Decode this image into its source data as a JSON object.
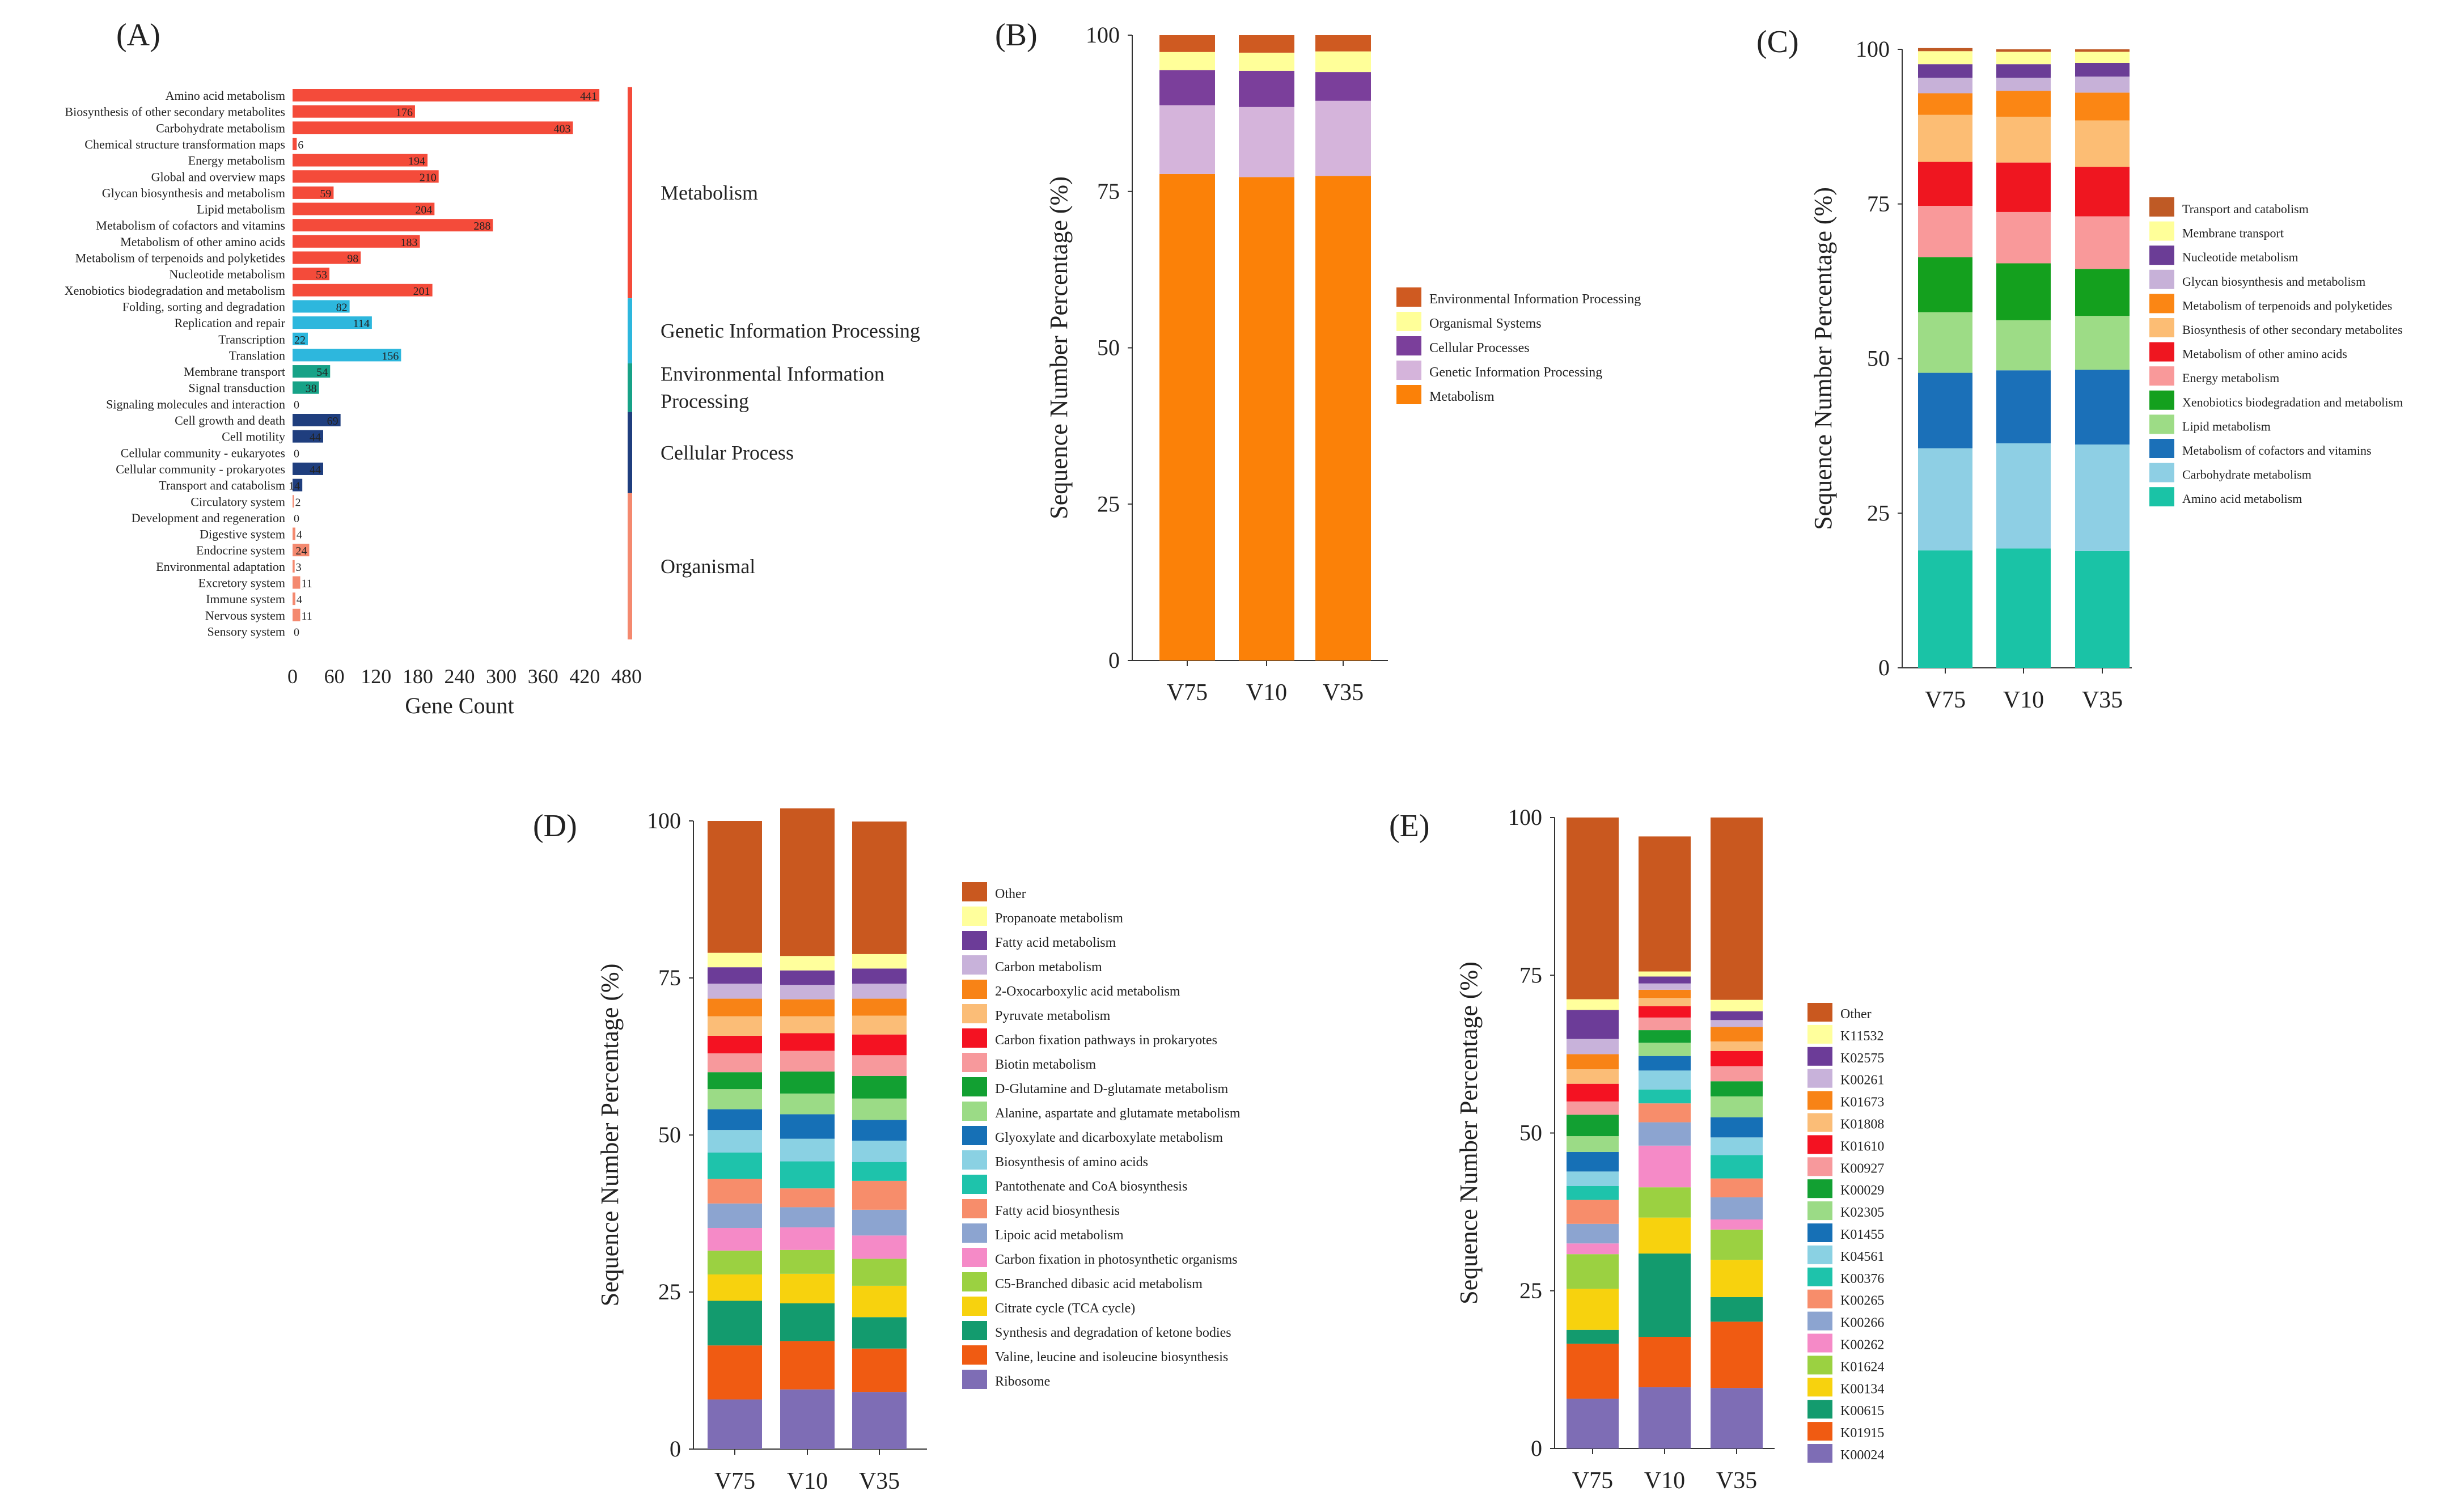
{
  "panel_labels": {
    "A": "(A)",
    "B": "(B)",
    "C": "(C)",
    "D": "(D)",
    "E": "(E)"
  },
  "colors": {
    "metabolism": "#f44b3a",
    "genetic": "#2db7dd",
    "environmental": "#17a287",
    "cellular": "#1f3e7e",
    "organismal": "#f4896f"
  },
  "chart_data": [
    {
      "id": "A",
      "type": "bar",
      "orientation": "horizontal",
      "xlabel": "Gene Count",
      "xticks": [
        0,
        60,
        120,
        180,
        240,
        300,
        360,
        420,
        480
      ],
      "xlim": [
        0,
        480
      ],
      "categories": [
        "Amino acid metabolism",
        "Biosynthesis of other secondary metabolites",
        "Carbohydrate metabolism",
        "Chemical structure transformation maps",
        "Energy metabolism",
        "Global and overview maps",
        "Glycan biosynthesis and metabolism",
        "Lipid metabolism",
        "Metabolism of cofactors and vitamins",
        "Metabolism of other amino acids",
        "Metabolism of terpenoids and polyketides",
        "Nucleotide metabolism",
        "Xenobiotics biodegradation and metabolism",
        "Folding, sorting and degradation",
        "Replication and repair",
        "Transcription",
        "Translation",
        "Membrane transport",
        "Signal transduction",
        "Signaling molecules and interaction",
        "Cell growth and death",
        "Cell motility",
        "Cellular community - eukaryotes",
        "Cellular community - prokaryotes",
        "Transport and catabolism",
        "Circulatory system",
        "Development and regeneration",
        "Digestive system",
        "Endocrine system",
        "Environmental adaptation",
        "Excretory system",
        "Immune system",
        "Nervous system",
        "Sensory system"
      ],
      "values": [
        441,
        176,
        403,
        6,
        194,
        210,
        59,
        204,
        288,
        183,
        98,
        53,
        201,
        82,
        114,
        22,
        156,
        54,
        38,
        0,
        69,
        44,
        0,
        44,
        14,
        2,
        0,
        4,
        24,
        3,
        11,
        4,
        11,
        0
      ],
      "value_labels": [
        "441",
        "176",
        "403",
        "6",
        "194",
        "210",
        "59",
        "204",
        "288",
        "183",
        "98",
        "53",
        "201",
        "82",
        "114",
        "22",
        "156",
        "54",
        "38",
        "0",
        "69",
        "44",
        "0",
        "44",
        "14",
        "2",
        "0",
        "4",
        "24",
        "3",
        "11",
        "4",
        "11",
        "0"
      ],
      "groups": [
        {
          "key": "metabolism",
          "label": "Metabolism",
          "start": 0,
          "end": 12
        },
        {
          "key": "genetic",
          "label": "Genetic Information Processing",
          "start": 13,
          "end": 16
        },
        {
          "key": "environmental",
          "label": "Environmental Information Processing",
          "lines": [
            "Environmental Information",
            "Processing"
          ],
          "start": 17,
          "end": 19
        },
        {
          "key": "cellular",
          "label": "Cellular Process",
          "start": 20,
          "end": 24
        },
        {
          "key": "organismal",
          "label": "Organismal",
          "start": 25,
          "end": 33
        }
      ]
    },
    {
      "id": "B",
      "type": "stacked-bar",
      "ylabel": "Sequence Number Percentage (%)",
      "ylim": [
        0,
        100
      ],
      "yticks": [
        0,
        25,
        50,
        75,
        100
      ],
      "categories": [
        "V75",
        "V10",
        "V35"
      ],
      "series": [
        {
          "name": "Metabolism",
          "color": "#fb8108",
          "values": [
            77.8,
            77.3,
            77.5
          ]
        },
        {
          "name": "Genetic Information Processing",
          "color": "#d5b4db",
          "values": [
            11.0,
            11.2,
            12.0
          ]
        },
        {
          "name": "Cellular Processes",
          "color": "#7b3f9b",
          "values": [
            5.6,
            5.8,
            4.6
          ]
        },
        {
          "name": "Organismal Systems",
          "color": "#ffff99",
          "values": [
            2.9,
            2.9,
            3.3
          ]
        },
        {
          "name": "Environmental Information Processing",
          "color": "#cf5a21",
          "values": [
            2.7,
            2.8,
            2.6
          ]
        }
      ],
      "legend_order": [
        "Environmental Information Processing",
        "Organismal Systems",
        "Cellular Processes",
        "Genetic Information Processing",
        "Metabolism"
      ]
    },
    {
      "id": "C",
      "type": "stacked-bar",
      "ylabel": "Sequence Number Percentage (%)",
      "ylim": [
        0,
        100
      ],
      "yticks": [
        0,
        25,
        50,
        75,
        100
      ],
      "categories": [
        "V75",
        "V10",
        "V35"
      ],
      "series": [
        {
          "name": "Amino acid metabolism",
          "color": "#1ac3a6",
          "values": [
            19.0,
            19.3,
            18.9
          ]
        },
        {
          "name": "Carbohydrate metabolism",
          "color": "#8ecfe4",
          "values": [
            16.5,
            17.0,
            17.2
          ]
        },
        {
          "name": "Metabolism of cofactors and vitamins",
          "color": "#1b70b8",
          "values": [
            12.2,
            11.8,
            12.1
          ]
        },
        {
          "name": "Lipid metabolism",
          "color": "#9ddc86",
          "values": [
            9.8,
            8.1,
            8.7
          ]
        },
        {
          "name": "Xenobiotics biodegradation and metabolism",
          "color": "#14a01e",
          "values": [
            8.9,
            9.2,
            7.6
          ]
        },
        {
          "name": "Energy metabolism",
          "color": "#f9999a",
          "values": [
            8.3,
            8.3,
            8.5
          ]
        },
        {
          "name": "Metabolism of other amino acids",
          "color": "#ef1620",
          "values": [
            7.1,
            8.0,
            8.0
          ]
        },
        {
          "name": "Biosynthesis of other secondary metabolites",
          "color": "#fcbd74",
          "values": [
            7.6,
            7.4,
            7.5
          ]
        },
        {
          "name": "Metabolism of terpenoids and polyketides",
          "color": "#fb8614",
          "values": [
            3.5,
            4.2,
            4.5
          ]
        },
        {
          "name": "Glycan biosynthesis and metabolism",
          "color": "#c7b1d8",
          "values": [
            2.5,
            2.1,
            2.6
          ]
        },
        {
          "name": "Nucleotide metabolism",
          "color": "#6b3d96",
          "values": [
            2.2,
            2.2,
            2.2
          ]
        },
        {
          "name": "Membrane transport",
          "color": "#ffff99",
          "values": [
            2.1,
            2.0,
            1.8
          ]
        },
        {
          "name": "Transport and catabolism",
          "color": "#bf5a25",
          "values": [
            0.5,
            0.4,
            0.4
          ]
        }
      ],
      "legend_order": [
        "Transport and catabolism",
        "Membrane transport",
        "Nucleotide metabolism",
        "Glycan biosynthesis and metabolism",
        "Metabolism of terpenoids and polyketides",
        "Biosynthesis of other secondary metabolites",
        "Metabolism of other amino acids",
        "Energy metabolism",
        "Xenobiotics biodegradation and metabolism",
        "Lipid metabolism",
        "Metabolism of cofactors and vitamins",
        "Carbohydrate metabolism",
        "Amino acid metabolism"
      ]
    },
    {
      "id": "D",
      "type": "stacked-bar",
      "ylabel": "Sequence Number Percentage (%)",
      "ylim": [
        0,
        100
      ],
      "yticks": [
        0,
        25,
        50,
        75,
        100
      ],
      "categories": [
        "V75",
        "V10",
        "V35"
      ],
      "series": [
        {
          "name": "Ribosome",
          "color": "#7e6db5",
          "values": [
            7.9,
            9.5,
            9.1
          ]
        },
        {
          "name": "Valine, leucine and isoleucine biosynthesis",
          "color": "#f05b12",
          "values": [
            8.6,
            7.7,
            6.9
          ]
        },
        {
          "name": "Synthesis and degradation of ketone bodies",
          "color": "#139b6e",
          "values": [
            7.1,
            6.0,
            5.0
          ]
        },
        {
          "name": "Citrate cycle (TCA cycle)",
          "color": "#f7d20e",
          "values": [
            4.2,
            4.7,
            5.0
          ]
        },
        {
          "name": "C5-Branched dibasic acid metabolism",
          "color": "#9bd141",
          "values": [
            3.8,
            3.8,
            4.3
          ]
        },
        {
          "name": "Carbon fixation in photosynthetic organisms",
          "color": "#f58ac7",
          "values": [
            3.6,
            3.6,
            3.7
          ]
        },
        {
          "name": "Lipoic acid metabolism",
          "color": "#8ca4d0",
          "values": [
            3.9,
            3.2,
            4.1
          ]
        },
        {
          "name": "Fatty acid biosynthesis",
          "color": "#f78d6b",
          "values": [
            3.9,
            3.0,
            4.6
          ]
        },
        {
          "name": "Pantothenate and CoA biosynthesis",
          "color": "#1ec3ab",
          "values": [
            4.2,
            4.3,
            3.0
          ]
        },
        {
          "name": "Biosynthesis of amino acids",
          "color": "#8ad1e3",
          "values": [
            3.6,
            3.6,
            3.4
          ]
        },
        {
          "name": "Glyoxylate and dicarboxylate metabolism",
          "color": "#1670b6",
          "values": [
            3.3,
            3.9,
            3.3
          ]
        },
        {
          "name": "Alanine, aspartate and glutamate metabolism",
          "color": "#9bdb86",
          "values": [
            3.2,
            3.3,
            3.4
          ]
        },
        {
          "name": "D-Glutamine and D-glutamate metabolism",
          "color": "#12a032",
          "values": [
            2.7,
            3.5,
            3.6
          ]
        },
        {
          "name": "Biotin metabolism",
          "color": "#f7999c",
          "values": [
            3.0,
            3.3,
            3.3
          ]
        },
        {
          "name": "Carbon fixation pathways in prokaryotes",
          "color": "#f41222",
          "values": [
            2.8,
            2.8,
            3.3
          ]
        },
        {
          "name": "Pyruvate metabolism",
          "color": "#fbbd77",
          "values": [
            3.1,
            2.7,
            3.0
          ]
        },
        {
          "name": "2-Oxocarboxylic acid metabolism",
          "color": "#f88316",
          "values": [
            2.8,
            2.7,
            2.7
          ]
        },
        {
          "name": "Carbon metabolism",
          "color": "#c8b2da",
          "values": [
            2.4,
            2.3,
            2.4
          ]
        },
        {
          "name": "Fatty acid metabolism",
          "color": "#6c3c98",
          "values": [
            2.6,
            2.3,
            2.4
          ]
        },
        {
          "name": "Propanoate metabolism",
          "color": "#ffff9c",
          "values": [
            2.3,
            2.3,
            2.3
          ]
        },
        {
          "name": "Other",
          "color": "#c9581f",
          "values": [
            21.0,
            23.5,
            21.1
          ]
        }
      ],
      "legend_order": [
        "Other",
        "Propanoate metabolism",
        "Fatty acid metabolism",
        "Carbon metabolism",
        "2-Oxocarboxylic acid metabolism",
        "Pyruvate metabolism",
        "Carbon fixation pathways in prokaryotes",
        "Biotin metabolism",
        "D-Glutamine and D-glutamate metabolism",
        "Alanine, aspartate and glutamate metabolism",
        "Glyoxylate and dicarboxylate metabolism",
        "Biosynthesis of amino acids",
        "Pantothenate and CoA biosynthesis",
        "Fatty acid biosynthesis",
        "Lipoic acid metabolism",
        "Carbon fixation in photosynthetic organisms",
        "C5-Branched dibasic acid metabolism",
        "Citrate cycle (TCA cycle)",
        "Synthesis and degradation of ketone bodies",
        "Valine, leucine and isoleucine biosynthesis",
        "Ribosome"
      ]
    },
    {
      "id": "E",
      "type": "stacked-bar",
      "ylabel": "Sequence Number Percentage (%)",
      "ylim": [
        0,
        100
      ],
      "yticks": [
        0,
        25,
        50,
        75,
        100
      ],
      "categories": [
        "V75",
        "V10",
        "V35"
      ],
      "series": [
        {
          "name": "K00024",
          "color": "#7e6db5",
          "values": [
            7.9,
            9.7,
            9.6
          ]
        },
        {
          "name": "K01915",
          "color": "#f05b12",
          "values": [
            8.7,
            8.0,
            10.5
          ]
        },
        {
          "name": "K00615",
          "color": "#139b6e",
          "values": [
            2.2,
            13.2,
            3.9
          ]
        },
        {
          "name": "K00134",
          "color": "#f7d20e",
          "values": [
            6.5,
            5.7,
            5.9
          ]
        },
        {
          "name": "K01624",
          "color": "#9bd141",
          "values": [
            5.5,
            4.8,
            4.8
          ]
        },
        {
          "name": "K00262",
          "color": "#f58ac7",
          "values": [
            1.7,
            6.6,
            1.6
          ]
        },
        {
          "name": "K00266",
          "color": "#8ca4d0",
          "values": [
            3.1,
            3.7,
            3.5
          ]
        },
        {
          "name": "K00265",
          "color": "#f78d6b",
          "values": [
            3.8,
            3.0,
            3.0
          ]
        },
        {
          "name": "K00376",
          "color": "#1ec3ab",
          "values": [
            2.2,
            2.2,
            3.7
          ]
        },
        {
          "name": "K04561",
          "color": "#8ad1e3",
          "values": [
            2.3,
            3.0,
            2.8
          ]
        },
        {
          "name": "K01455",
          "color": "#1670b6",
          "values": [
            3.1,
            2.3,
            3.2
          ]
        },
        {
          "name": "K02305",
          "color": "#9bdb86",
          "values": [
            2.5,
            2.1,
            3.3
          ]
        },
        {
          "name": "K00029",
          "color": "#12a032",
          "values": [
            3.4,
            2.0,
            2.4
          ]
        },
        {
          "name": "K00927",
          "color": "#f7999c",
          "values": [
            2.1,
            2.0,
            2.4
          ]
        },
        {
          "name": "K01610",
          "color": "#f41222",
          "values": [
            2.8,
            1.8,
            2.4
          ]
        },
        {
          "name": "K01808",
          "color": "#fbbd77",
          "values": [
            2.3,
            1.3,
            1.5
          ]
        },
        {
          "name": "K01673",
          "color": "#f88316",
          "values": [
            2.4,
            1.3,
            2.3
          ]
        },
        {
          "name": "K00261",
          "color": "#c8b2da",
          "values": [
            2.4,
            1.0,
            1.1
          ]
        },
        {
          "name": "K02575",
          "color": "#6c3c98",
          "values": [
            4.6,
            1.1,
            1.4
          ]
        },
        {
          "name": "K11532",
          "color": "#ffff9c",
          "values": [
            1.7,
            0.8,
            1.8
          ]
        },
        {
          "name": "Other",
          "color": "#c9581f",
          "values": [
            28.8,
            21.4,
            28.9
          ]
        }
      ],
      "legend_order": [
        "Other",
        "K11532",
        "K02575",
        "K00261",
        "K01673",
        "K01808",
        "K01610",
        "K00927",
        "K00029",
        "K02305",
        "K01455",
        "K04561",
        "K00376",
        "K00265",
        "K00266",
        "K00262",
        "K01624",
        "K00134",
        "K00615",
        "K01915",
        "K00024"
      ]
    }
  ]
}
